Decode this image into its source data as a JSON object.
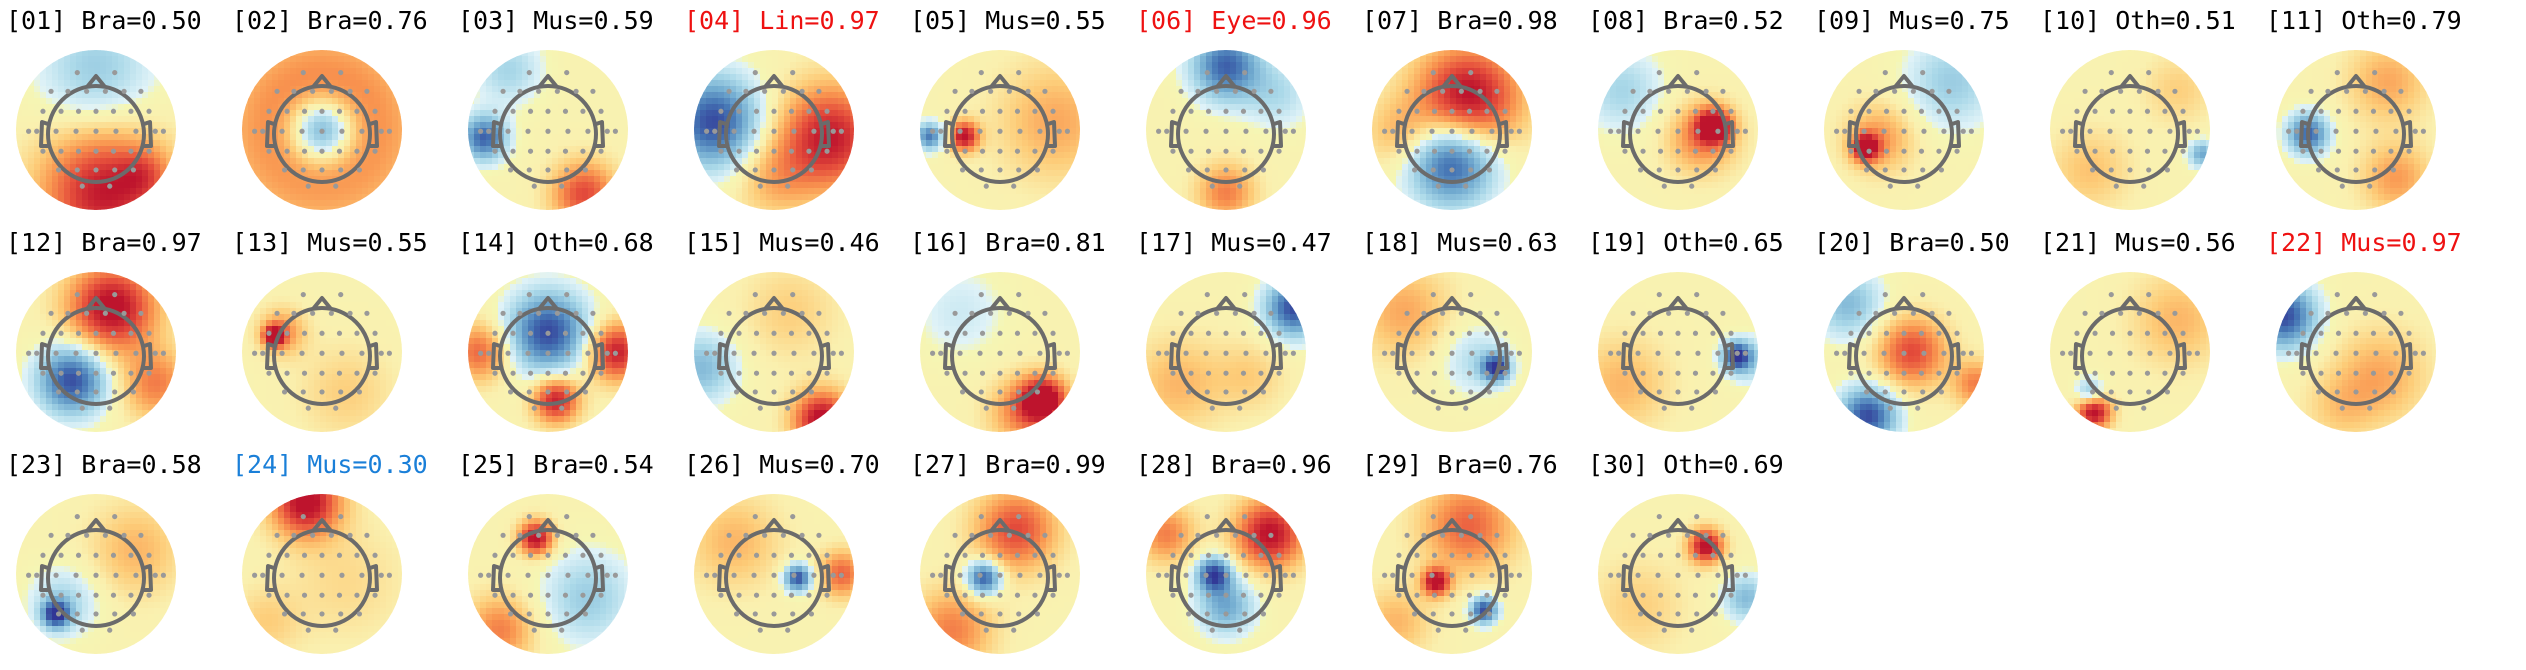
{
  "colors": {
    "normal_title": "#000000",
    "flagged_high": "#ee1111",
    "flagged_low": "#1a7fd8",
    "outline": "#6b6b6b",
    "sensor": "#999999"
  },
  "components": [
    {
      "label": "[01] Bra=0.50",
      "status": "normal",
      "map": [
        [
          0,
          -0.75,
          -0.4,
          0.5
        ],
        [
          0.1,
          0.78,
          0.9,
          0.55
        ],
        [
          0.6,
          0.55,
          0.3,
          0.22
        ]
      ]
    },
    {
      "label": "[02] Bra=0.76",
      "status": "normal",
      "map": [
        [
          0,
          0,
          -1,
          0.28
        ],
        [
          0,
          0,
          0.95,
          0.75
        ],
        [
          0,
          0.05,
          -0.4,
          0.5
        ]
      ]
    },
    {
      "label": "[03] Mus=0.59",
      "status": "normal",
      "map": [
        [
          -0.8,
          0.1,
          -0.9,
          0.2
        ],
        [
          0.45,
          0.8,
          0.7,
          0.28
        ],
        [
          -0.5,
          -0.75,
          -0.35,
          0.3
        ]
      ]
    },
    {
      "label": "[04] Lin=0.97",
      "status": "flagged_high",
      "map": [
        [
          -0.75,
          -0.1,
          -1,
          0.4
        ],
        [
          0.7,
          0.1,
          0.9,
          0.45
        ],
        [
          0,
          0.6,
          0.3,
          0.35
        ]
      ]
    },
    {
      "label": "[05] Mus=0.55",
      "status": "normal",
      "map": [
        [
          -0.45,
          0.08,
          0.95,
          0.13
        ],
        [
          -0.88,
          0.08,
          -0.8,
          0.12
        ],
        [
          0.7,
          -0.1,
          0.35,
          0.5
        ]
      ]
    },
    {
      "label": "[06] Eye=0.96",
      "status": "flagged_high",
      "map": [
        [
          0,
          -0.8,
          -0.9,
          0.3
        ],
        [
          0,
          0.78,
          0.5,
          0.25
        ],
        [
          0.65,
          -0.45,
          -0.3,
          0.3
        ]
      ]
    },
    {
      "label": "[07] Bra=0.98",
      "status": "normal",
      "map": [
        [
          0.2,
          -0.4,
          1,
          0.45
        ],
        [
          0,
          0.4,
          -1,
          0.38
        ],
        [
          -0.65,
          0.05,
          0.3,
          0.3
        ]
      ]
    },
    {
      "label": "[08] Bra=0.52",
      "status": "normal",
      "map": [
        [
          0.45,
          -0.05,
          1,
          0.15
        ],
        [
          0.3,
          0.1,
          0.5,
          0.3
        ],
        [
          -0.7,
          -0.5,
          -0.35,
          0.35
        ]
      ]
    },
    {
      "label": "[09] Mus=0.75",
      "status": "normal",
      "map": [
        [
          -0.48,
          0.22,
          1,
          0.12
        ],
        [
          -0.3,
          0.1,
          0.4,
          0.3
        ],
        [
          0.6,
          -0.6,
          -0.4,
          0.4
        ]
      ]
    },
    {
      "label": "[10] Oth=0.51",
      "status": "normal",
      "map": [
        [
          0.9,
          0.3,
          -0.6,
          0.12
        ],
        [
          -0.5,
          0.5,
          0.25,
          0.35
        ],
        [
          0.6,
          -0.5,
          0.2,
          0.3
        ]
      ]
    },
    {
      "label": "[11] Oth=0.79",
      "status": "normal",
      "map": [
        [
          -0.6,
          0.05,
          -0.9,
          0.18
        ],
        [
          0.4,
          -0.6,
          0.35,
          0.35
        ],
        [
          0.5,
          0.6,
          0.4,
          0.3
        ]
      ]
    },
    {
      "label": "[12] Bra=0.97",
      "status": "normal",
      "map": [
        [
          0.2,
          -0.55,
          1,
          0.38
        ],
        [
          -0.3,
          0.35,
          -1,
          0.3
        ],
        [
          0.75,
          0.4,
          0.5,
          0.3
        ]
      ]
    },
    {
      "label": "[13] Mus=0.55",
      "status": "normal",
      "map": [
        [
          -0.6,
          -0.2,
          1,
          0.09
        ],
        [
          -0.5,
          -0.25,
          0.45,
          0.2
        ],
        [
          0.3,
          0.5,
          0.2,
          0.4
        ]
      ]
    },
    {
      "label": "[14] Oth=0.68",
      "status": "normal",
      "map": [
        [
          0,
          -0.25,
          -1,
          0.35
        ],
        [
          0.85,
          0,
          0.9,
          0.25
        ],
        [
          0.1,
          0.6,
          0.9,
          0.2
        ],
        [
          -0.85,
          0,
          0.6,
          0.25
        ]
      ]
    },
    {
      "label": "[15] Mus=0.46",
      "status": "normal",
      "map": [
        [
          0.6,
          0.85,
          1,
          0.25
        ],
        [
          -0.9,
          0.2,
          -0.5,
          0.3
        ],
        [
          0.2,
          -0.5,
          0.2,
          0.4
        ]
      ]
    },
    {
      "label": "[16] Bra=0.81",
      "status": "normal",
      "map": [
        [
          0.55,
          0.6,
          1,
          0.2
        ],
        [
          0.3,
          0.75,
          0.5,
          0.3
        ],
        [
          -0.5,
          -0.5,
          -0.2,
          0.4
        ]
      ]
    },
    {
      "label": "[17] Mus=0.47",
      "status": "normal",
      "map": [
        [
          0.85,
          -0.55,
          -1,
          0.25
        ],
        [
          -0.6,
          0.4,
          0.3,
          0.4
        ],
        [
          0.3,
          0.3,
          0.2,
          0.3
        ]
      ]
    },
    {
      "label": "[18] Mus=0.63",
      "status": "normal",
      "map": [
        [
          0.55,
          0.2,
          -1,
          0.12
        ],
        [
          0.3,
          0.1,
          -0.3,
          0.3
        ],
        [
          -0.6,
          -0.5,
          0.35,
          0.4
        ]
      ]
    },
    {
      "label": "[19] Oth=0.65",
      "status": "normal",
      "map": [
        [
          0.72,
          0.05,
          -1,
          0.12
        ],
        [
          0.9,
          0.1,
          -0.4,
          0.2
        ],
        [
          -0.7,
          0.4,
          0.3,
          0.4
        ]
      ]
    },
    {
      "label": "[20] Bra=0.50",
      "status": "normal",
      "map": [
        [
          -0.45,
          0.8,
          -1,
          0.25
        ],
        [
          0.1,
          0,
          0.7,
          0.3
        ],
        [
          0.9,
          0.4,
          0.5,
          0.2
        ],
        [
          -0.7,
          -0.6,
          -0.5,
          0.3
        ]
      ]
    },
    {
      "label": "[21] Mus=0.56",
      "status": "normal",
      "map": [
        [
          -0.45,
          0.75,
          1,
          0.15
        ],
        [
          -0.5,
          0.5,
          -0.5,
          0.12
        ],
        [
          0.6,
          -0.4,
          0.3,
          0.4
        ]
      ]
    },
    {
      "label": "[22] Mus=0.97",
      "status": "flagged_high",
      "map": [
        [
          -0.9,
          -0.45,
          -1,
          0.28
        ],
        [
          0.3,
          0.3,
          0.35,
          0.4
        ],
        [
          -0.2,
          0.7,
          0.2,
          0.3
        ]
      ]
    },
    {
      "label": "[23] Bra=0.58",
      "status": "normal",
      "map": [
        [
          -0.5,
          0.5,
          -1,
          0.12
        ],
        [
          -0.4,
          0.35,
          -0.35,
          0.3
        ],
        [
          0.5,
          -0.3,
          0.3,
          0.4
        ]
      ]
    },
    {
      "label": "[24] Mus=0.30",
      "status": "flagged_low",
      "map": [
        [
          -0.2,
          -0.9,
          1,
          0.3
        ],
        [
          0.3,
          0.1,
          0.15,
          0.5
        ],
        [
          -0.7,
          0.6,
          0.2,
          0.3
        ]
      ]
    },
    {
      "label": "[25] Bra=0.54",
      "status": "normal",
      "map": [
        [
          -0.15,
          -0.45,
          1,
          0.15
        ],
        [
          0.5,
          0.3,
          -0.4,
          0.4
        ],
        [
          -0.6,
          0.7,
          0.5,
          0.3
        ]
      ]
    },
    {
      "label": "[26] Mus=0.70",
      "status": "normal",
      "map": [
        [
          0.3,
          0.05,
          -1,
          0.12
        ],
        [
          0.85,
          0,
          0.6,
          0.2
        ],
        [
          -0.5,
          -0.4,
          0.3,
          0.4
        ]
      ]
    },
    {
      "label": "[27] Bra=0.99",
      "status": "normal",
      "map": [
        [
          -0.2,
          0.05,
          -1,
          0.15
        ],
        [
          0.2,
          -0.55,
          0.7,
          0.35
        ],
        [
          -0.6,
          0.7,
          0.5,
          0.35
        ]
      ]
    },
    {
      "label": "[28] Bra=0.96",
      "status": "normal",
      "map": [
        [
          -0.15,
          0,
          -1,
          0.15
        ],
        [
          0,
          0.4,
          -0.6,
          0.25
        ],
        [
          0.55,
          -0.5,
          0.95,
          0.3
        ],
        [
          -0.75,
          -0.5,
          0.5,
          0.25
        ]
      ]
    },
    {
      "label": "[29] Bra=0.76",
      "status": "normal",
      "map": [
        [
          -0.2,
          0.1,
          1,
          0.12
        ],
        [
          0.4,
          0.45,
          -1,
          0.12
        ],
        [
          0.2,
          -0.6,
          0.6,
          0.4
        ],
        [
          -0.7,
          0.6,
          0.3,
          0.3
        ]
      ]
    },
    {
      "label": "[30] Oth=0.69",
      "status": "normal",
      "map": [
        [
          0.35,
          -0.35,
          1,
          0.15
        ],
        [
          0.85,
          0.3,
          -0.5,
          0.2
        ],
        [
          -0.5,
          0.4,
          0.2,
          0.4
        ]
      ]
    }
  ]
}
